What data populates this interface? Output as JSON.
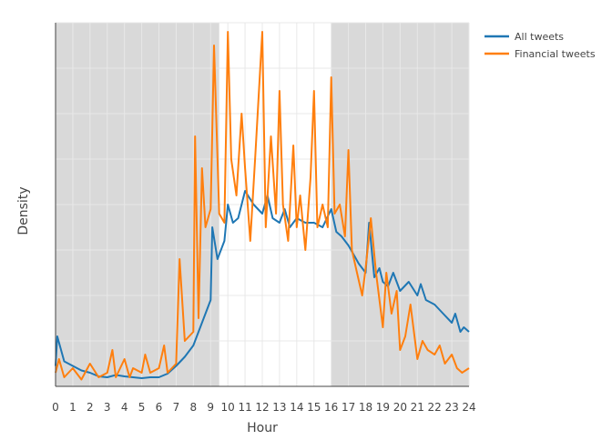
{
  "chart_data": {
    "type": "line",
    "title": "",
    "xlabel": "Hour",
    "ylabel": "Density",
    "xlim": [
      0,
      24
    ],
    "x_ticks": [
      0,
      1,
      2,
      3,
      4,
      5,
      6,
      7,
      8,
      9,
      10,
      11,
      12,
      13,
      14,
      15,
      16,
      17,
      18,
      19,
      20,
      21,
      22,
      23,
      24
    ],
    "y_tick_labels_shown": false,
    "grid": true,
    "legend_position": "top-right",
    "shaded_intervals": [
      [
        0,
        9.5
      ],
      [
        16,
        24
      ]
    ],
    "shading_color": "#d9d9d9",
    "series": [
      {
        "name": "All tweets",
        "color": "#1f77b4",
        "x": [
          0,
          0.1,
          0.5,
          1,
          1.5,
          2,
          2.5,
          3,
          3.5,
          4,
          4.5,
          5,
          5.5,
          6,
          6.5,
          7,
          7.5,
          8,
          8.3,
          8.6,
          9,
          9.1,
          9.4,
          9.8,
          10,
          10.3,
          10.6,
          11,
          11.5,
          12,
          12.3,
          12.6,
          13,
          13.3,
          13.6,
          14,
          14.5,
          15,
          15.5,
          16,
          16.3,
          16.6,
          17,
          17.3,
          17.6,
          18,
          18.2,
          18.5,
          18.8,
          19,
          19.3,
          19.6,
          20,
          20.5,
          21,
          21.2,
          21.5,
          22,
          22.5,
          23,
          23.2,
          23.5,
          23.7,
          24
        ],
        "y": [
          0.45,
          1.1,
          0.55,
          0.45,
          0.35,
          0.3,
          0.22,
          0.2,
          0.25,
          0.22,
          0.2,
          0.18,
          0.2,
          0.2,
          0.28,
          0.45,
          0.65,
          0.9,
          1.2,
          1.5,
          1.9,
          3.5,
          2.8,
          3.2,
          4.0,
          3.6,
          3.7,
          4.3,
          4.0,
          3.8,
          4.2,
          3.7,
          3.6,
          3.9,
          3.5,
          3.7,
          3.6,
          3.6,
          3.5,
          3.9,
          3.4,
          3.3,
          3.1,
          2.9,
          2.7,
          2.5,
          3.6,
          2.4,
          2.6,
          2.3,
          2.2,
          2.5,
          2.1,
          2.3,
          2.0,
          2.25,
          1.9,
          1.8,
          1.6,
          1.4,
          1.6,
          1.2,
          1.3,
          1.2
        ]
      },
      {
        "name": "Financial tweets",
        "color": "#ff7f0e",
        "x": [
          0,
          0.2,
          0.5,
          1,
          1.5,
          2,
          2.5,
          3,
          3.3,
          3.5,
          4,
          4.3,
          4.5,
          5,
          5.2,
          5.5,
          6,
          6.3,
          6.5,
          7,
          7.2,
          7.5,
          8,
          8.1,
          8.3,
          8.5,
          8.7,
          9,
          9.2,
          9.5,
          9.8,
          10,
          10.2,
          10.5,
          10.8,
          11,
          11.3,
          11.6,
          12,
          12.2,
          12.5,
          12.8,
          13,
          13.2,
          13.5,
          13.8,
          14,
          14.2,
          14.5,
          14.8,
          15,
          15.2,
          15.5,
          15.8,
          16,
          16.2,
          16.5,
          16.8,
          17,
          17.2,
          17.5,
          17.8,
          18,
          18.3,
          18.6,
          19,
          19.2,
          19.5,
          19.8,
          20,
          20.3,
          20.6,
          21,
          21.3,
          21.6,
          22,
          22.3,
          22.6,
          23,
          23.3,
          23.6,
          24
        ],
        "y": [
          0.3,
          0.6,
          0.2,
          0.4,
          0.15,
          0.5,
          0.2,
          0.3,
          0.8,
          0.2,
          0.6,
          0.2,
          0.4,
          0.3,
          0.7,
          0.3,
          0.4,
          0.9,
          0.3,
          0.5,
          2.8,
          1.0,
          1.2,
          5.5,
          1.5,
          4.8,
          3.5,
          3.9,
          7.5,
          3.8,
          3.6,
          7.8,
          5.0,
          4.2,
          6.0,
          4.8,
          3.2,
          5.1,
          7.8,
          3.5,
          5.5,
          3.8,
          6.5,
          4.0,
          3.2,
          5.3,
          3.5,
          4.2,
          3.0,
          4.6,
          6.5,
          3.5,
          4.0,
          3.5,
          6.8,
          3.8,
          4.0,
          3.3,
          5.2,
          3.0,
          2.5,
          2.0,
          2.6,
          3.7,
          2.5,
          1.3,
          2.5,
          1.6,
          2.1,
          0.8,
          1.1,
          1.8,
          0.6,
          1.0,
          0.8,
          0.7,
          0.9,
          0.5,
          0.7,
          0.4,
          0.3,
          0.4
        ]
      }
    ]
  }
}
